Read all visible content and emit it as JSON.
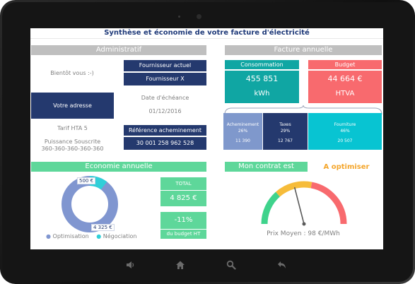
{
  "title": "Synthèse et économie de votre facture d'électricité",
  "admin": {
    "header": "Administratif",
    "greeting": "Bientôt vous :-)",
    "supplier_label": "Fournisseur actuel",
    "supplier_value": "Fournisseur X",
    "address": "Votre adresse",
    "due_label": "Date d'échéance",
    "due_value": "01/12/2016",
    "tariff": "Tarif HTA 5",
    "power_label": "Puissance Souscrite",
    "power_value": "360-360-360-360-360",
    "ref_label": "Référence acheminement",
    "ref_value": "30 001 258 962 528"
  },
  "invoice": {
    "header": "Facture annuelle",
    "consumption_label": "Consommation",
    "consumption_value": "455 851",
    "consumption_unit": "kWh",
    "budget_label": "Budget",
    "budget_value": "44 664 €",
    "budget_unit": "HTVA",
    "breakdown": [
      {
        "name": "Acheminement",
        "pct": "26%",
        "value": "11 390",
        "color": "#7f98cc"
      },
      {
        "name": "Taxes",
        "pct": "29%",
        "value": "12 767",
        "color": "#24396e"
      },
      {
        "name": "Fourniture",
        "pct": "46%",
        "value": "20 507",
        "color": "#08c4d2"
      }
    ]
  },
  "savings": {
    "header": "Economie annuelle",
    "donut": {
      "optimisation": 4325,
      "negociation": 500
    },
    "label_negociation": "500 €",
    "label_optimisation": "4 325 €",
    "legend_optimisation": "Optimisation",
    "legend_negociation": "Négociation",
    "total_label": "TOTAL",
    "total_value": "4 825 €",
    "pct_value": "-11%",
    "pct_caption": "du budget HT",
    "colors": {
      "optimisation": "#8096d0",
      "negociation": "#30cfd8"
    }
  },
  "contract": {
    "header": "Mon contrat est",
    "status": "A optimiser",
    "status_color": "#f4a62c",
    "gauge_level": 0.42,
    "price_text": "Prix Moyen : 98 €/MWh"
  },
  "nav": {
    "icons": [
      "volume-icon",
      "home-icon",
      "search-icon",
      "back-icon"
    ]
  }
}
